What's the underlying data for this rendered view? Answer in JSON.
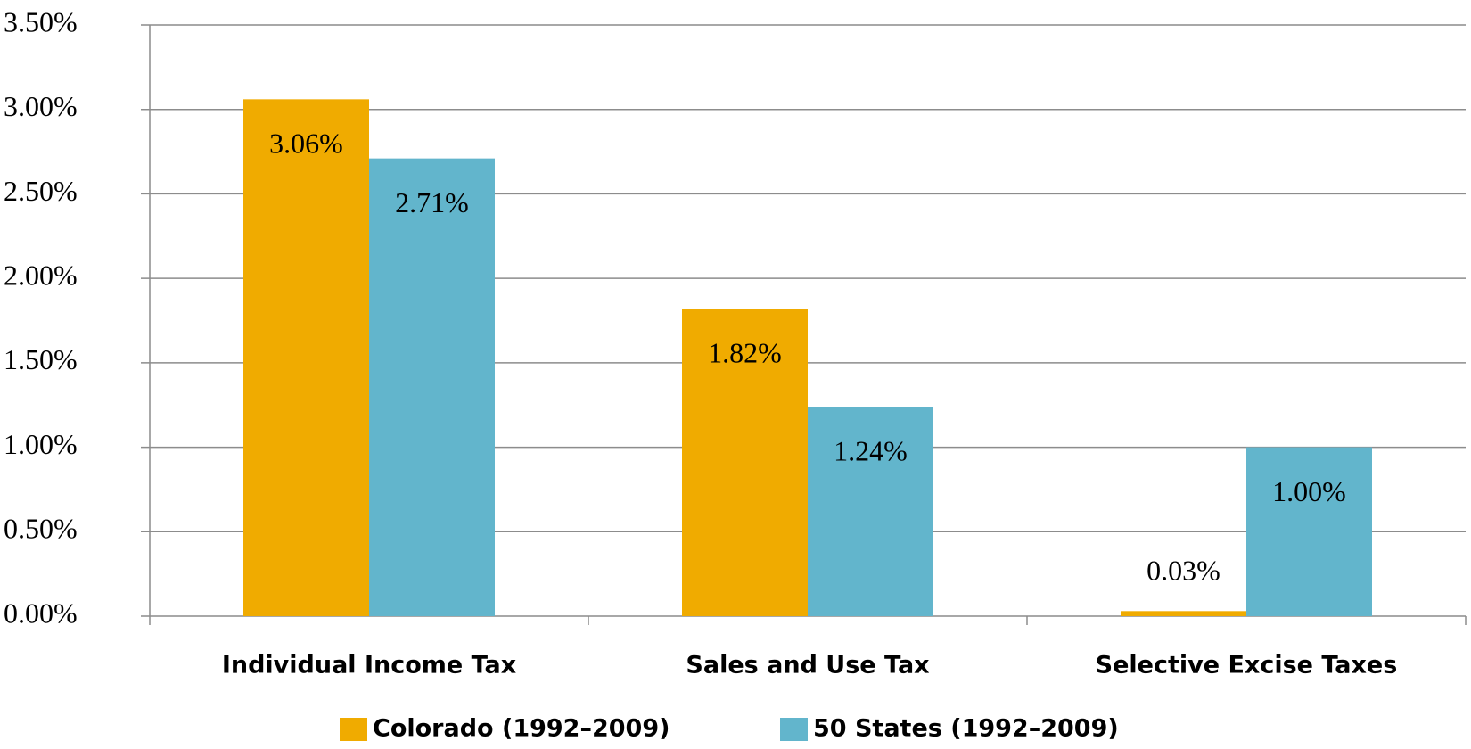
{
  "chart_data": {
    "type": "bar",
    "categories": [
      "Individual Income Tax",
      "Sales and Use Tax",
      "Selective Excise Taxes"
    ],
    "series": [
      {
        "name": "Colorado (1992–2009)",
        "color": "#f0ab00",
        "values": [
          3.06,
          1.82,
          0.03
        ],
        "value_labels": [
          "3.06%",
          "1.82%",
          "0.03%"
        ]
      },
      {
        "name": "50 States (1992–2009)",
        "color": "#62b5cc",
        "values": [
          2.71,
          1.24,
          1.0
        ],
        "value_labels": [
          "2.71%",
          "1.24%",
          "1.00%"
        ]
      }
    ],
    "ylim": [
      0,
      3.5
    ],
    "yticks": [
      {
        "value": 0,
        "label": "0.00%"
      },
      {
        "value": 0.5,
        "label": "0.50%"
      },
      {
        "value": 1,
        "label": "1.00%"
      },
      {
        "value": 1.5,
        "label": "1.50%"
      },
      {
        "value": 2,
        "label": "2.00%"
      },
      {
        "value": 2.5,
        "label": "2.50%"
      },
      {
        "value": 3,
        "label": "3.00%"
      },
      {
        "value": 3.5,
        "label": "3.50%"
      }
    ],
    "grid": true,
    "legend": "bottom"
  }
}
